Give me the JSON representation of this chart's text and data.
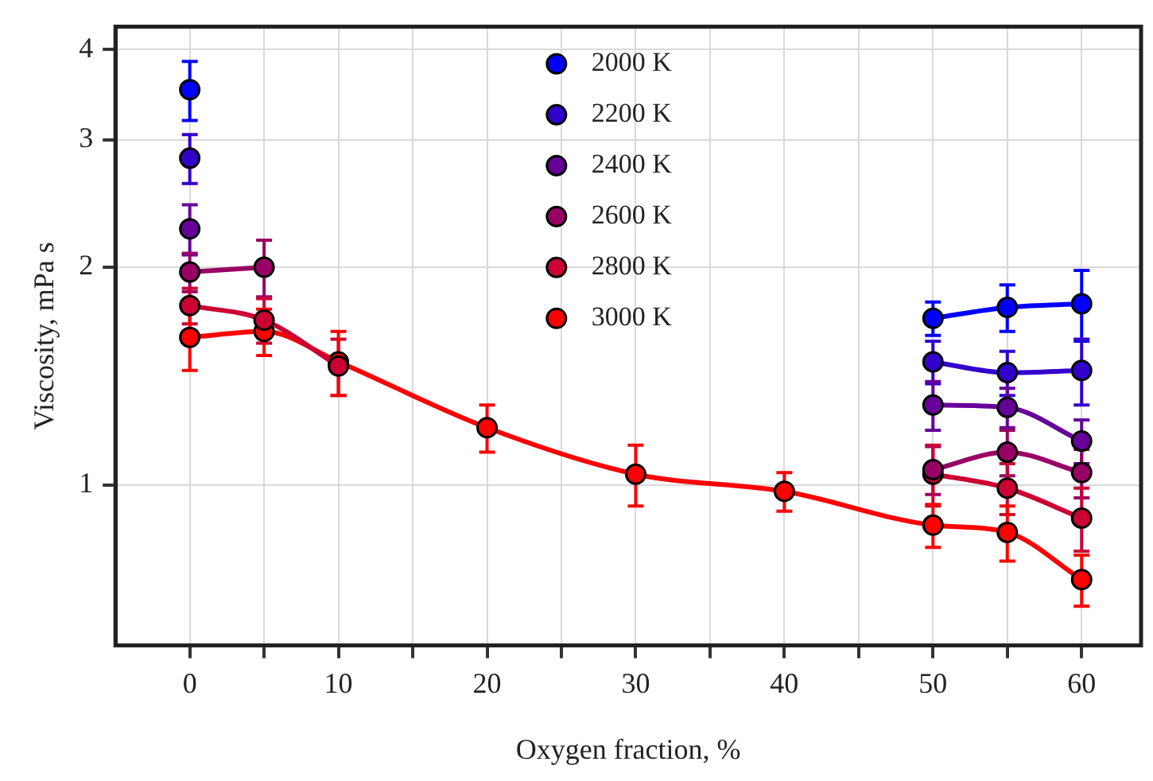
{
  "chart_data": {
    "type": "line",
    "xlabel": "Oxygen fraction, %",
    "ylabel": "Viscosity, mPa s",
    "log": "y",
    "grid": true,
    "legend": "top",
    "marker": "circle",
    "line_style": "solid",
    "xlim": [
      -5,
      64
    ],
    "ylim": [
      0.61,
      4.3
    ],
    "xticks": [
      0,
      {
        "value": 5,
        "label": null
      },
      10,
      {
        "value": 15,
        "label": null
      },
      20,
      {
        "value": 25,
        "label": null
      },
      30,
      {
        "value": 35,
        "label": null
      },
      40,
      {
        "value": 45,
        "label": null
      },
      50,
      {
        "value": 55,
        "label": null
      },
      60
    ],
    "yticks": [
      1,
      2,
      3,
      4
    ],
    "series": [
      {
        "name": "2000 K",
        "color": "#0000ff",
        "x": [
          0,
          5,
          50,
          55,
          60
        ],
        "values": [
          3.52,
          null,
          1.7,
          1.76,
          1.78
        ],
        "errors": [
          0.33,
          null,
          0.09,
          0.13,
          0.2
        ]
      },
      {
        "name": "2200 K",
        "color": "#3300cc",
        "x": [
          0,
          5,
          50,
          55,
          60
        ],
        "values": [
          2.83,
          null,
          1.48,
          1.43,
          1.44
        ],
        "errors": [
          0.22,
          null,
          0.1,
          0.1,
          0.15
        ]
      },
      {
        "name": "2400 K",
        "color": "#660099",
        "x": [
          0,
          5,
          50,
          55,
          60
        ],
        "values": [
          2.26,
          null,
          1.29,
          1.28,
          1.15
        ],
        "errors": [
          0.18,
          null,
          0.1,
          0.08,
          0.08
        ]
      },
      {
        "name": "2600 K",
        "color": "#990066",
        "x": [
          0,
          5,
          10,
          50,
          55,
          60
        ],
        "values": [
          1.97,
          2.0,
          null,
          1.05,
          1.11,
          1.04
        ],
        "errors": [
          0.12,
          0.18,
          null,
          0.08,
          0.08,
          0.08
        ]
      },
      {
        "name": "2800 K",
        "color": "#cc0033",
        "x": [
          0,
          5,
          10,
          20,
          30,
          40,
          50,
          55,
          60
        ],
        "values": [
          1.77,
          1.69,
          1.46,
          null,
          null,
          null,
          1.035,
          0.99,
          0.9
        ],
        "errors": [
          0.1,
          0.12,
          0.13,
          null,
          null,
          null,
          0.1,
          0.08,
          0.09
        ]
      },
      {
        "name": "3000 K",
        "color": "#ff0000",
        "x": [
          0,
          5,
          10,
          20,
          30,
          40,
          50,
          55,
          60
        ],
        "values": [
          1.6,
          1.63,
          1.48,
          1.2,
          1.035,
          0.98,
          0.88,
          0.86,
          0.74
        ],
        "errors": [
          0.16,
          0.12,
          0.15,
          0.09,
          0.1,
          0.06,
          0.06,
          0.075,
          0.06
        ]
      }
    ]
  }
}
